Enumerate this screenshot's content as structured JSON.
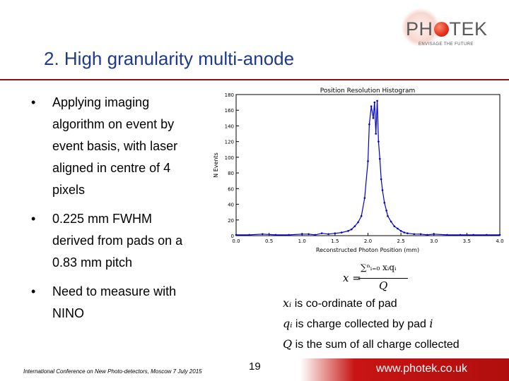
{
  "logo": {
    "text_ph": "PH",
    "text_tek": "TEK",
    "tagline": "ENVISAGE THE FUTURE"
  },
  "title": "2. High granularity multi-anode",
  "bullets": [
    {
      "dot": "•",
      "lines": [
        "Applying imaging",
        "algorithm on event by",
        "event basis, with laser",
        "aligned in centre of 4",
        "pixels"
      ]
    },
    {
      "dot": "•",
      "lines": [
        "0.225 mm FWHM",
        "derived from pads on a",
        "0.83 mm pitch"
      ]
    },
    {
      "dot": "•",
      "lines": [
        "Need to measure with",
        "NINO"
      ]
    }
  ],
  "chart_data": {
    "type": "line",
    "title": "Position Resolution Histogram",
    "xlabel": "Reconstructed Photon Position (mm)",
    "ylabel": "N Events",
    "xlim": [
      0.0,
      4.0
    ],
    "ylim": [
      0,
      180
    ],
    "xticks": [
      "0.0",
      "0.5",
      "1.0",
      "1.5",
      "2.0",
      "2.5",
      "3.0",
      "3.5",
      "4.0"
    ],
    "yticks": [
      "0",
      "20",
      "40",
      "60",
      "80",
      "100",
      "120",
      "140",
      "160",
      "180"
    ],
    "series": [
      {
        "color": "#0000cc",
        "x": [
          0.0,
          0.2,
          0.4,
          0.6,
          0.8,
          1.0,
          1.1,
          1.2,
          1.3,
          1.4,
          1.5,
          1.6,
          1.7,
          1.75,
          1.8,
          1.85,
          1.9,
          1.95,
          2.0,
          2.02,
          2.05,
          2.08,
          2.1,
          2.12,
          2.14,
          2.16,
          2.18,
          2.2,
          2.22,
          2.25,
          2.28,
          2.3,
          2.35,
          2.4,
          2.45,
          2.5,
          2.55,
          2.6,
          2.7,
          2.8,
          2.9,
          3.0,
          3.2,
          3.4,
          3.6,
          3.8,
          4.0
        ],
        "y": [
          1,
          1,
          2,
          1,
          1,
          2,
          2,
          1,
          3,
          2,
          3,
          4,
          6,
          8,
          12,
          17,
          25,
          48,
          95,
          142,
          165,
          150,
          170,
          130,
          172,
          120,
          98,
          72,
          58,
          42,
          32,
          25,
          18,
          12,
          9,
          6,
          4,
          3,
          2,
          2,
          1,
          2,
          1,
          1,
          1,
          1,
          1
        ]
      }
    ]
  },
  "formula": {
    "lhs": "x = ",
    "numerator": "∑ⁿᵢ₌₀ xᵢqᵢ",
    "denominator": "Q"
  },
  "definitions": [
    {
      "symbol": "xᵢ",
      "text": " is co-ordinate of pad"
    },
    {
      "symbol": "qᵢ",
      "text": " is charge collected by pad ",
      "tail": "i"
    },
    {
      "symbol": "Q",
      "text": " is the sum of all charge collected"
    }
  ],
  "footer": {
    "left": "International Conference on New Photo-detectors, Moscow 7 July 2015",
    "page": "19",
    "url": "www.photek.co.uk"
  }
}
